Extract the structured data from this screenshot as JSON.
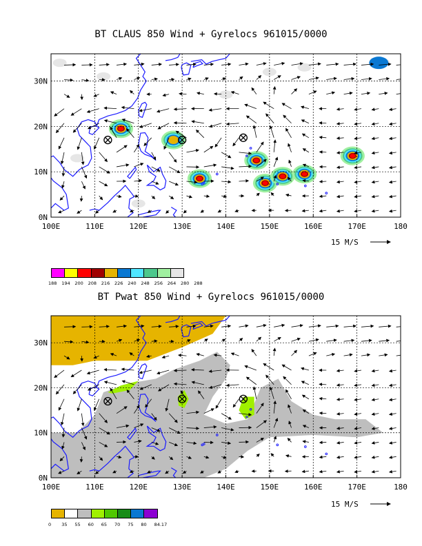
{
  "panels": [
    {
      "title": "BT CLAUS 850 Wind + Gyrelocs 961015/0000",
      "variable": "CLAUS brightness temperature",
      "colorbar": {
        "labels": [
          "188",
          "194",
          "200",
          "208",
          "216",
          "226",
          "240",
          "248",
          "256",
          "264",
          "280",
          "288"
        ],
        "colors": [
          "#ff00ff",
          "#ffff00",
          "#ff0000",
          "#a00000",
          "#e6b400",
          "#0a78d2",
          "#50e6ff",
          "#4cc88c",
          "#a0f0a0",
          "#e6e6e6"
        ]
      }
    },
    {
      "title": "BT Pwat 850 Wind + Gyrelocs 961015/0000",
      "variable": "Precipitable water",
      "colorbar": {
        "labels": [
          "0",
          "35",
          "55",
          "60",
          "65",
          "70",
          "75",
          "80",
          "84.17"
        ],
        "colors": [
          "#e6b400",
          "#ffffff",
          "#bebebe",
          "#a0f000",
          "#50c800",
          "#178c17",
          "#0a78d2",
          "#8c00d2"
        ]
      }
    }
  ],
  "chart_data": [
    {
      "type": "heatmap",
      "title": "BT CLAUS 850 Wind + Gyrelocs 961015/0000",
      "x_ticks": [
        "100E",
        "110E",
        "120E",
        "130E",
        "140E",
        "150E",
        "160E",
        "170E",
        "180"
      ],
      "y_ticks": [
        "0N",
        "10N",
        "20N",
        "30N"
      ],
      "xlim": [
        100,
        180
      ],
      "ylim": [
        0,
        36
      ],
      "grid": true,
      "vector_reference": "15 M/S",
      "gyre_locations": [
        {
          "lon": 113,
          "lat": 17
        },
        {
          "lon": 130,
          "lat": 17
        },
        {
          "lon": 144,
          "lat": 17.5
        }
      ],
      "cold_cloud_blobs": [
        {
          "lon": 116,
          "lat": 19.5,
          "level": 3
        },
        {
          "lon": 128,
          "lat": 17,
          "level": 1
        },
        {
          "lon": 134,
          "lat": 8.5,
          "level": 3
        },
        {
          "lon": 147,
          "lat": 12.5,
          "level": 4
        },
        {
          "lon": 149,
          "lat": 7.5,
          "level": 3
        },
        {
          "lon": 153,
          "lat": 9,
          "level": 3
        },
        {
          "lon": 158,
          "lat": 9.5,
          "level": 3
        },
        {
          "lon": 169,
          "lat": 13.5,
          "level": 3
        }
      ]
    },
    {
      "type": "heatmap",
      "title": "BT Pwat 850 Wind + Gyrelocs 961015/0000",
      "x_ticks": [
        "100E",
        "110E",
        "120E",
        "130E",
        "140E",
        "150E",
        "160E",
        "170E",
        "180"
      ],
      "y_ticks": [
        "0N",
        "10N",
        "20N",
        "30N"
      ],
      "xlim": [
        100,
        180
      ],
      "ylim": [
        0,
        36
      ],
      "grid": true,
      "vector_reference": "15 M/S",
      "gyre_locations": [
        {
          "lon": 113,
          "lat": 17
        },
        {
          "lon": 130,
          "lat": 17.5
        },
        {
          "lon": 144,
          "lat": 17.5
        }
      ]
    }
  ]
}
